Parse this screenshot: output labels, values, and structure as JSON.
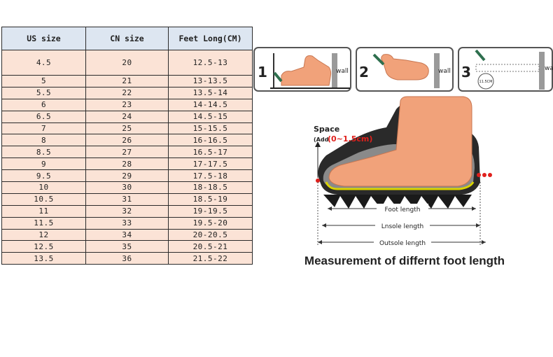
{
  "table": {
    "headers": [
      "US size",
      "CN size",
      "Feet Long(CM)"
    ],
    "rows": [
      [
        "4.5",
        "20",
        "12.5-13"
      ],
      [
        "5",
        "21",
        "13-13.5"
      ],
      [
        "5.5",
        "22",
        "13.5-14"
      ],
      [
        "6",
        "23",
        "14-14.5"
      ],
      [
        "6.5",
        "24",
        "14.5-15"
      ],
      [
        "7",
        "25",
        "15-15.5"
      ],
      [
        "8",
        "26",
        "16-16.5"
      ],
      [
        "8.5",
        "27",
        "16.5-17"
      ],
      [
        "9",
        "28",
        "17-17.5"
      ],
      [
        "9.5",
        "29",
        "17.5-18"
      ],
      [
        "10",
        "30",
        "18-18.5"
      ],
      [
        "10.5",
        "31",
        "18.5-19"
      ],
      [
        "11",
        "32",
        "19-19.5"
      ],
      [
        "11.5",
        "33",
        "19.5-20"
      ],
      [
        "12",
        "34",
        "20-20.5"
      ],
      [
        "12.5",
        "35",
        "20.5-21"
      ],
      [
        "13.5",
        "36",
        "21.5-22"
      ]
    ]
  },
  "guide": {
    "steps": [
      {
        "number": "1",
        "wall": "wall"
      },
      {
        "number": "2",
        "wall": "wall"
      },
      {
        "number": "3",
        "wall": "wa",
        "ruler_mark": "11.5CM"
      }
    ],
    "space_label": "Space",
    "space_add": "(Add",
    "space_range": "(0~1.5cm)",
    "foot_length": "Foot length",
    "insole_length": "Lnsole length",
    "outsole_length": "Outsole length",
    "caption": "Measurement of differnt foot length"
  },
  "colors": {
    "header_bg": "#dde6f1",
    "row_bg": "#fbe3d6",
    "foot": "#f1a27a",
    "accent_red": "#e0201c"
  }
}
